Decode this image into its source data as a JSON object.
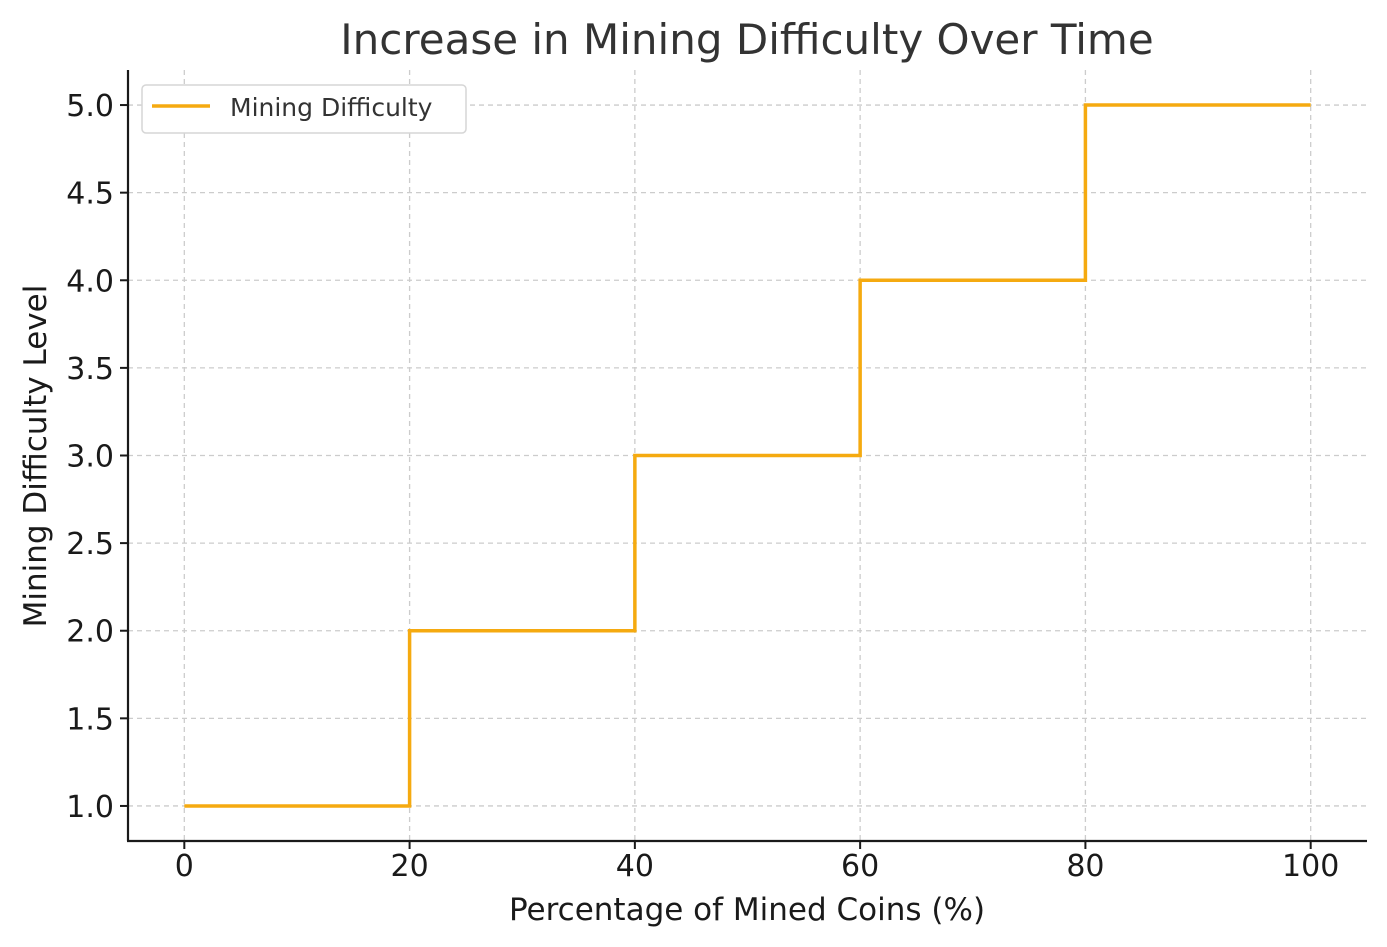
{
  "chart_data": {
    "type": "line",
    "subtype": "step-post",
    "title": "Increase in Mining Difficulty Over Time",
    "xlabel": "Percentage of Mined Coins (%)",
    "ylabel": "Mining Difficulty Level",
    "x": [
      0,
      20,
      40,
      60,
      80,
      100
    ],
    "series": [
      {
        "name": "Mining Difficulty",
        "values": [
          1,
          2,
          3,
          4,
          5,
          5
        ],
        "color": "#f5aa10"
      }
    ],
    "xlim": [
      -5,
      105
    ],
    "ylim": [
      0.8,
      5.2
    ],
    "xticks": [
      0,
      20,
      40,
      60,
      80,
      100
    ],
    "xtick_labels": [
      "0",
      "20",
      "40",
      "60",
      "80",
      "100"
    ],
    "yticks": [
      1.0,
      1.5,
      2.0,
      2.5,
      3.0,
      3.5,
      4.0,
      4.5,
      5.0
    ],
    "ytick_labels": [
      "1.0",
      "1.5",
      "2.0",
      "2.5",
      "3.0",
      "3.5",
      "4.0",
      "4.5",
      "5.0"
    ],
    "grid": true,
    "legend_position": "top-left"
  }
}
